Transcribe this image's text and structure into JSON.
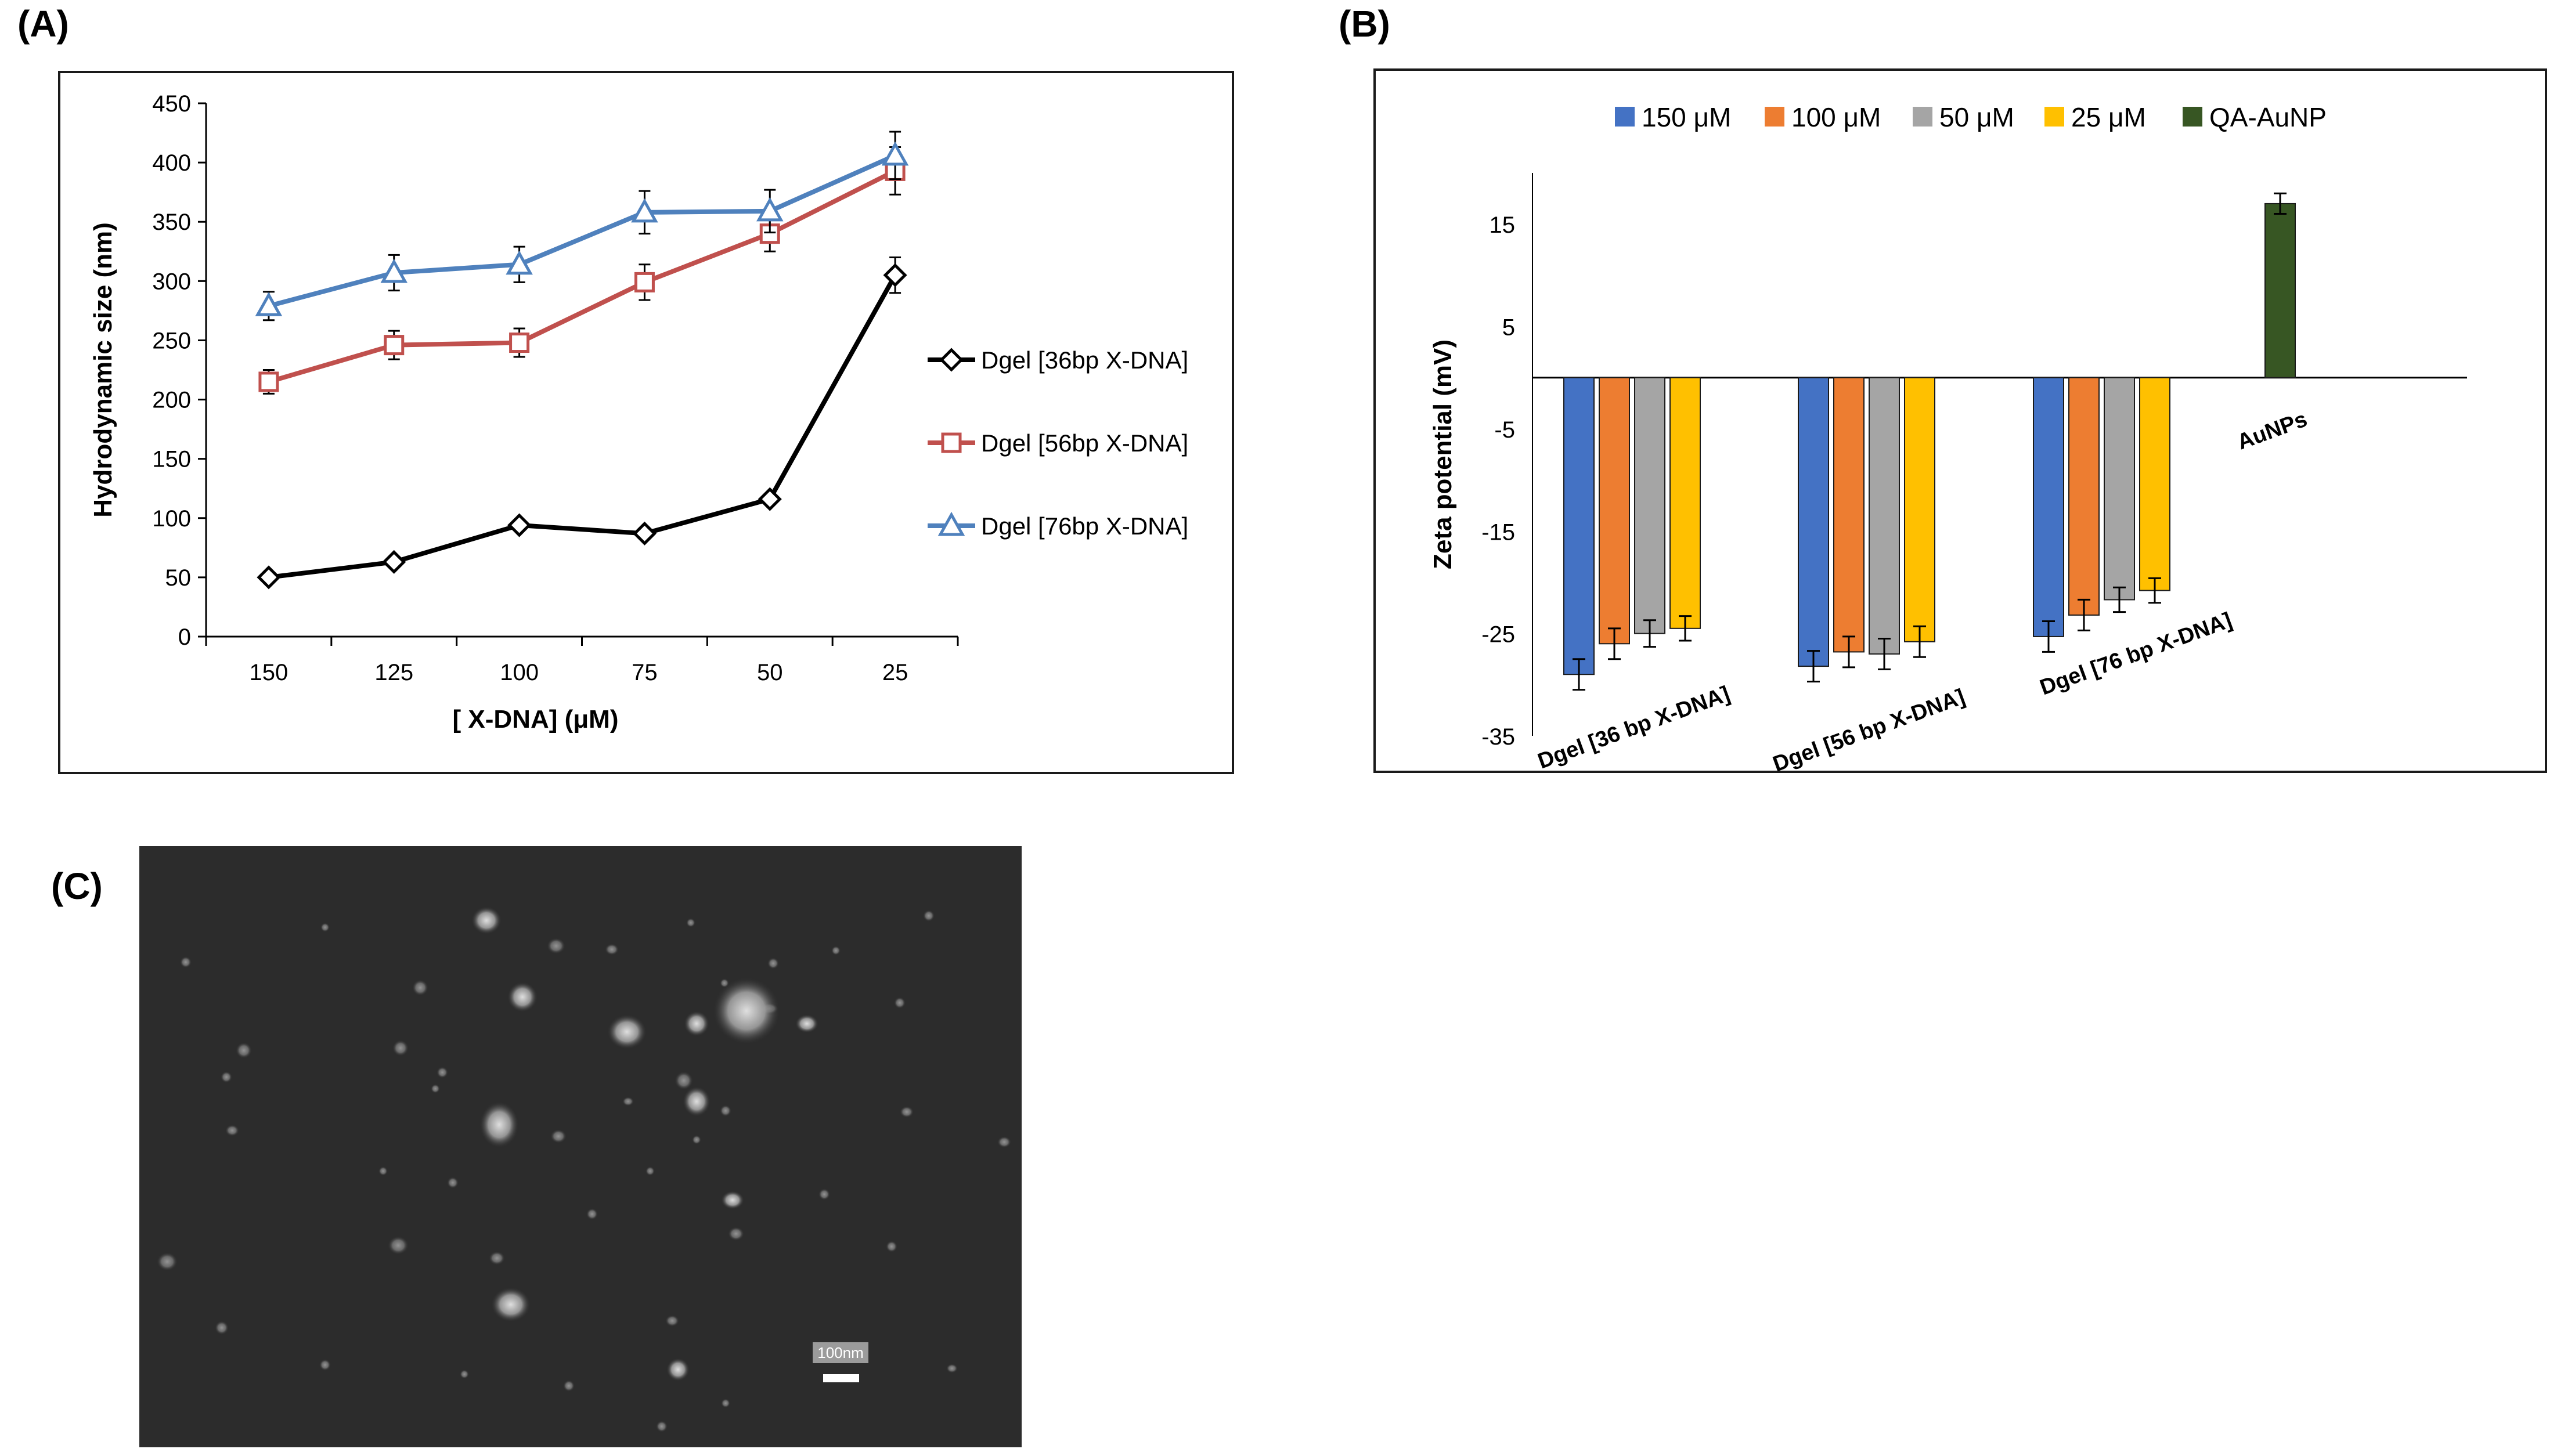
{
  "panels": {
    "a": "(A)",
    "b": "(B)",
    "c": "(C)"
  },
  "chart_data": [
    {
      "type": "line",
      "title": "",
      "xlabel": "[ X-DNA] (μM)",
      "ylabel": "Hydrodynamic size (nm)",
      "categories": [
        "150",
        "125",
        "100",
        "75",
        "50",
        "25"
      ],
      "ylim": [
        0,
        450
      ],
      "yticks": [
        0,
        50,
        100,
        150,
        200,
        250,
        300,
        350,
        400,
        450
      ],
      "legend_position": "right",
      "series": [
        {
          "name": "Dgel [36bp X-DNA]",
          "color": "#000000",
          "marker": "diamond",
          "values": [
            50,
            63,
            94,
            87,
            116,
            305
          ],
          "errors": [
            0,
            0,
            0,
            0,
            0,
            15
          ]
        },
        {
          "name": "Dgel [56bp X-DNA]",
          "color": "#c0504d",
          "marker": "square",
          "values": [
            215,
            246,
            248,
            299,
            340,
            393
          ],
          "errors": [
            10,
            12,
            12,
            15,
            15,
            20
          ]
        },
        {
          "name": "Dgel [76bp X-DNA]",
          "color": "#4f81bd",
          "marker": "triangle",
          "values": [
            279,
            307,
            314,
            358,
            359,
            406
          ],
          "errors": [
            12,
            15,
            15,
            18,
            18,
            20
          ]
        }
      ]
    },
    {
      "type": "bar",
      "title": "",
      "xlabel": "",
      "ylabel": "Zeta potential (mV)",
      "ylim": [
        -35,
        20
      ],
      "yticks": [
        15,
        5,
        -5,
        -15,
        -25,
        -35
      ],
      "legend_position": "top",
      "categories": [
        "Dgel [36 bp X-DNA]",
        "Dgel [56 bp X-DNA]",
        "Dgel [76 bp X-DNA]",
        "AuNPs"
      ],
      "series": [
        {
          "name": "150 μM",
          "color": "#4472c4",
          "values": [
            -29,
            -28.2,
            -25.3,
            null
          ],
          "errors": [
            1.5,
            1.5,
            1.5,
            null
          ]
        },
        {
          "name": "100 μM",
          "color": "#ed7d31",
          "values": [
            -26,
            -26.8,
            -23.2,
            null
          ],
          "errors": [
            1.5,
            1.5,
            1.5,
            null
          ]
        },
        {
          "name": "50 μM",
          "color": "#a5a5a5",
          "values": [
            -25,
            -27,
            -21.7,
            null
          ],
          "errors": [
            1.3,
            1.5,
            1.2,
            null
          ]
        },
        {
          "name": "25 μM",
          "color": "#ffc000",
          "values": [
            -24.5,
            -25.8,
            -20.8,
            null
          ],
          "errors": [
            1.2,
            1.5,
            1.2,
            null
          ]
        },
        {
          "name": "QA-AuNP",
          "color": "#375623",
          "values": [
            null,
            null,
            null,
            17
          ],
          "errors": [
            null,
            null,
            null,
            1
          ]
        }
      ]
    }
  ],
  "micrograph": {
    "scale_bar_label": "100nm"
  }
}
